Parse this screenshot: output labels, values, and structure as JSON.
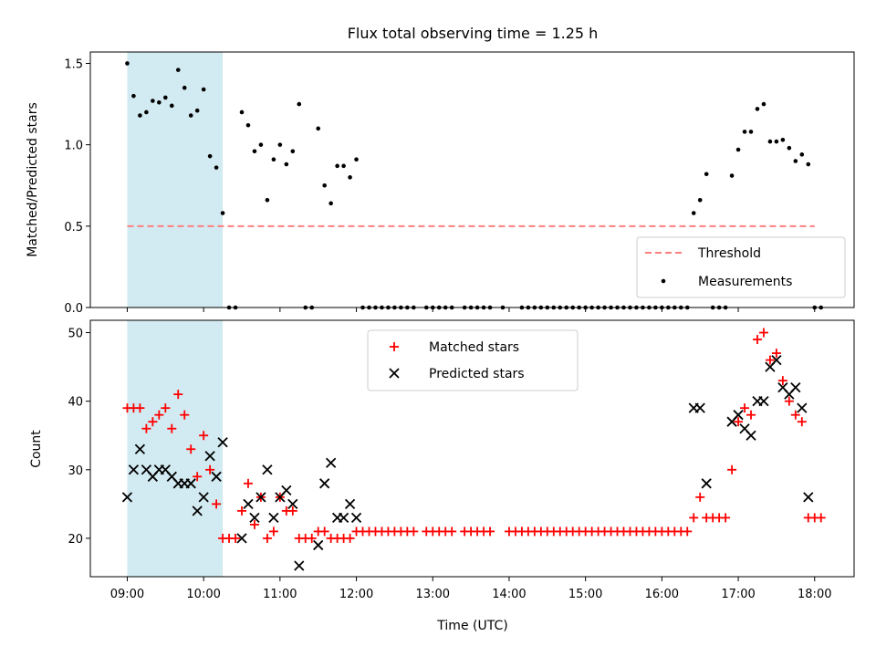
{
  "chart_data": [
    {
      "type": "scatter",
      "title": "Flux total observing time = 1.25 h",
      "xlabel": "",
      "ylabel": "Matched/Predicted stars",
      "xlim": [
        "08:31",
        "18:31"
      ],
      "ylim": [
        0,
        1.57
      ],
      "yticks": [
        "0.0",
        "0.5",
        "1.0",
        "1.5"
      ],
      "shaded_interval": [
        "09:00",
        "10:15"
      ],
      "shaded_color": "#add8e6",
      "threshold": {
        "name": "Threshold",
        "value": 0.5,
        "x_range": [
          "09:00",
          "18:00"
        ],
        "color": "#ff7f7f",
        "style": "dashed"
      },
      "legend_position": "lower-right",
      "series": [
        {
          "name": "Measurements",
          "color": "#000000",
          "marker": "dot",
          "points": [
            [
              "09:00",
              1.5
            ],
            [
              "09:05",
              1.3
            ],
            [
              "09:10",
              1.18
            ],
            [
              "09:15",
              1.2
            ],
            [
              "09:20",
              1.27
            ],
            [
              "09:25",
              1.26
            ],
            [
              "09:30",
              1.29
            ],
            [
              "09:35",
              1.24
            ],
            [
              "09:40",
              1.46
            ],
            [
              "09:45",
              1.35
            ],
            [
              "09:50",
              1.18
            ],
            [
              "09:55",
              1.21
            ],
            [
              "10:00",
              1.34
            ],
            [
              "10:05",
              0.93
            ],
            [
              "10:10",
              0.86
            ],
            [
              "10:15",
              0.58
            ],
            [
              "10:20",
              0.0
            ],
            [
              "10:25",
              0.0
            ],
            [
              "10:30",
              1.2
            ],
            [
              "10:35",
              1.12
            ],
            [
              "10:40",
              0.96
            ],
            [
              "10:45",
              1.0
            ],
            [
              "10:50",
              0.66
            ],
            [
              "10:55",
              0.91
            ],
            [
              "11:00",
              1.0
            ],
            [
              "11:05",
              0.88
            ],
            [
              "11:10",
              0.96
            ],
            [
              "11:15",
              1.25
            ],
            [
              "11:20",
              0.0
            ],
            [
              "11:25",
              0.0
            ],
            [
              "11:30",
              1.1
            ],
            [
              "11:35",
              0.75
            ],
            [
              "11:40",
              0.64
            ],
            [
              "11:45",
              0.87
            ],
            [
              "11:50",
              0.87
            ],
            [
              "11:55",
              0.8
            ],
            [
              "12:00",
              0.91
            ],
            [
              "12:05",
              0.0
            ],
            [
              "12:10",
              0.0
            ],
            [
              "12:15",
              0.0
            ],
            [
              "12:20",
              0.0
            ],
            [
              "12:25",
              0.0
            ],
            [
              "12:30",
              0.0
            ],
            [
              "12:35",
              0.0
            ],
            [
              "12:40",
              0.0
            ],
            [
              "12:45",
              0.0
            ],
            [
              "12:55",
              0.0
            ],
            [
              "13:00",
              0.0
            ],
            [
              "13:05",
              0.0
            ],
            [
              "13:10",
              0.0
            ],
            [
              "13:15",
              0.0
            ],
            [
              "13:25",
              0.0
            ],
            [
              "13:30",
              0.0
            ],
            [
              "13:35",
              0.0
            ],
            [
              "13:40",
              0.0
            ],
            [
              "13:45",
              0.0
            ],
            [
              "13:55",
              0.0
            ],
            [
              "14:10",
              0.0
            ],
            [
              "14:15",
              0.0
            ],
            [
              "14:20",
              0.0
            ],
            [
              "14:25",
              0.0
            ],
            [
              "14:30",
              0.0
            ],
            [
              "14:35",
              0.0
            ],
            [
              "14:40",
              0.0
            ],
            [
              "14:45",
              0.0
            ],
            [
              "14:50",
              0.0
            ],
            [
              "14:55",
              0.0
            ],
            [
              "15:00",
              0.0
            ],
            [
              "15:05",
              0.0
            ],
            [
              "15:10",
              0.0
            ],
            [
              "15:15",
              0.0
            ],
            [
              "15:20",
              0.0
            ],
            [
              "15:25",
              0.0
            ],
            [
              "15:30",
              0.0
            ],
            [
              "15:35",
              0.0
            ],
            [
              "15:40",
              0.0
            ],
            [
              "15:45",
              0.0
            ],
            [
              "15:50",
              0.0
            ],
            [
              "15:55",
              0.0
            ],
            [
              "16:00",
              0.0
            ],
            [
              "16:05",
              0.0
            ],
            [
              "16:10",
              0.0
            ],
            [
              "16:15",
              0.0
            ],
            [
              "16:20",
              0.0
            ],
            [
              "16:25",
              0.58
            ],
            [
              "16:30",
              0.66
            ],
            [
              "16:35",
              0.82
            ],
            [
              "16:40",
              0.0
            ],
            [
              "16:45",
              0.0
            ],
            [
              "16:50",
              0.0
            ],
            [
              "16:55",
              0.81
            ],
            [
              "17:00",
              0.97
            ],
            [
              "17:05",
              1.08
            ],
            [
              "17:10",
              1.08
            ],
            [
              "17:15",
              1.22
            ],
            [
              "17:20",
              1.25
            ],
            [
              "17:25",
              1.02
            ],
            [
              "17:30",
              1.02
            ],
            [
              "17:35",
              1.03
            ],
            [
              "17:40",
              0.98
            ],
            [
              "17:45",
              0.9
            ],
            [
              "17:50",
              0.94
            ],
            [
              "17:55",
              0.88
            ],
            [
              "18:00",
              0.0
            ],
            [
              "18:05",
              0.0
            ]
          ]
        }
      ]
    },
    {
      "type": "scatter",
      "title": "",
      "xlabel": "Time (UTC)",
      "ylabel": "Count",
      "xlim": [
        "08:31",
        "18:31"
      ],
      "ylim": [
        14.4,
        51.8
      ],
      "yticks": [
        "20",
        "30",
        "40",
        "50"
      ],
      "xticks": [
        "09:00",
        "10:00",
        "11:00",
        "12:00",
        "13:00",
        "14:00",
        "15:00",
        "16:00",
        "17:00",
        "18:00"
      ],
      "shaded_interval": [
        "09:00",
        "10:15"
      ],
      "shaded_color": "#add8e6",
      "legend_position": "upper-center",
      "series": [
        {
          "name": "Matched stars",
          "color": "#ff0000",
          "marker": "plus",
          "points": [
            [
              "09:00",
              39
            ],
            [
              "09:05",
              39
            ],
            [
              "09:10",
              39
            ],
            [
              "09:15",
              36
            ],
            [
              "09:20",
              37
            ],
            [
              "09:25",
              38
            ],
            [
              "09:30",
              39
            ],
            [
              "09:35",
              36
            ],
            [
              "09:40",
              41
            ],
            [
              "09:45",
              38
            ],
            [
              "09:50",
              33
            ],
            [
              "09:55",
              29
            ],
            [
              "10:00",
              35
            ],
            [
              "10:05",
              30
            ],
            [
              "10:10",
              25
            ],
            [
              "10:15",
              20
            ],
            [
              "10:20",
              20
            ],
            [
              "10:25",
              20
            ],
            [
              "10:30",
              24
            ],
            [
              "10:35",
              28
            ],
            [
              "10:40",
              22
            ],
            [
              "10:45",
              26
            ],
            [
              "10:50",
              20
            ],
            [
              "10:55",
              21
            ],
            [
              "11:00",
              26
            ],
            [
              "11:05",
              24
            ],
            [
              "11:10",
              24
            ],
            [
              "11:15",
              20
            ],
            [
              "11:20",
              20
            ],
            [
              "11:25",
              20
            ],
            [
              "11:30",
              21
            ],
            [
              "11:35",
              21
            ],
            [
              "11:40",
              20
            ],
            [
              "11:45",
              20
            ],
            [
              "11:50",
              20
            ],
            [
              "11:55",
              20
            ],
            [
              "12:00",
              21
            ],
            [
              "12:05",
              21
            ],
            [
              "12:10",
              21
            ],
            [
              "12:15",
              21
            ],
            [
              "12:20",
              21
            ],
            [
              "12:25",
              21
            ],
            [
              "12:30",
              21
            ],
            [
              "12:35",
              21
            ],
            [
              "12:40",
              21
            ],
            [
              "12:45",
              21
            ],
            [
              "12:55",
              21
            ],
            [
              "13:00",
              21
            ],
            [
              "13:05",
              21
            ],
            [
              "13:10",
              21
            ],
            [
              "13:15",
              21
            ],
            [
              "13:25",
              21
            ],
            [
              "13:30",
              21
            ],
            [
              "13:35",
              21
            ],
            [
              "13:40",
              21
            ],
            [
              "13:45",
              21
            ],
            [
              "14:00",
              21
            ],
            [
              "14:05",
              21
            ],
            [
              "14:10",
              21
            ],
            [
              "14:15",
              21
            ],
            [
              "14:20",
              21
            ],
            [
              "14:25",
              21
            ],
            [
              "14:30",
              21
            ],
            [
              "14:35",
              21
            ],
            [
              "14:40",
              21
            ],
            [
              "14:45",
              21
            ],
            [
              "14:50",
              21
            ],
            [
              "14:55",
              21
            ],
            [
              "15:00",
              21
            ],
            [
              "15:05",
              21
            ],
            [
              "15:10",
              21
            ],
            [
              "15:15",
              21
            ],
            [
              "15:20",
              21
            ],
            [
              "15:25",
              21
            ],
            [
              "15:30",
              21
            ],
            [
              "15:35",
              21
            ],
            [
              "15:40",
              21
            ],
            [
              "15:45",
              21
            ],
            [
              "15:50",
              21
            ],
            [
              "15:55",
              21
            ],
            [
              "16:00",
              21
            ],
            [
              "16:05",
              21
            ],
            [
              "16:10",
              21
            ],
            [
              "16:15",
              21
            ],
            [
              "16:20",
              21
            ],
            [
              "16:25",
              23
            ],
            [
              "16:30",
              26
            ],
            [
              "16:35",
              23
            ],
            [
              "16:40",
              23
            ],
            [
              "16:45",
              23
            ],
            [
              "16:50",
              23
            ],
            [
              "16:55",
              30
            ],
            [
              "17:00",
              37
            ],
            [
              "17:05",
              39
            ],
            [
              "17:10",
              38
            ],
            [
              "17:15",
              49
            ],
            [
              "17:20",
              50
            ],
            [
              "17:25",
              46
            ],
            [
              "17:30",
              47
            ],
            [
              "17:35",
              43
            ],
            [
              "17:40",
              40
            ],
            [
              "17:45",
              38
            ],
            [
              "17:50",
              37
            ],
            [
              "17:55",
              23
            ],
            [
              "18:00",
              23
            ],
            [
              "18:05",
              23
            ]
          ]
        },
        {
          "name": "Predicted stars",
          "color": "#000000",
          "marker": "x",
          "points": [
            [
              "09:00",
              26
            ],
            [
              "09:05",
              30
            ],
            [
              "09:10",
              33
            ],
            [
              "09:15",
              30
            ],
            [
              "09:20",
              29
            ],
            [
              "09:25",
              30
            ],
            [
              "09:30",
              30
            ],
            [
              "09:35",
              29
            ],
            [
              "09:40",
              28
            ],
            [
              "09:45",
              28
            ],
            [
              "09:50",
              28
            ],
            [
              "09:55",
              24
            ],
            [
              "10:00",
              26
            ],
            [
              "10:05",
              32
            ],
            [
              "10:10",
              29
            ],
            [
              "10:15",
              34
            ],
            [
              "10:30",
              20
            ],
            [
              "10:35",
              25
            ],
            [
              "10:40",
              23
            ],
            [
              "10:45",
              26
            ],
            [
              "10:50",
              30
            ],
            [
              "10:55",
              23
            ],
            [
              "11:00",
              26
            ],
            [
              "11:05",
              27
            ],
            [
              "11:10",
              25
            ],
            [
              "11:15",
              16
            ],
            [
              "11:30",
              19
            ],
            [
              "11:35",
              28
            ],
            [
              "11:40",
              31
            ],
            [
              "11:45",
              23
            ],
            [
              "11:50",
              23
            ],
            [
              "11:55",
              25
            ],
            [
              "12:00",
              23
            ],
            [
              "16:25",
              39
            ],
            [
              "16:30",
              39
            ],
            [
              "16:35",
              28
            ],
            [
              "16:55",
              37
            ],
            [
              "17:00",
              38
            ],
            [
              "17:05",
              36
            ],
            [
              "17:10",
              35
            ],
            [
              "17:15",
              40
            ],
            [
              "17:20",
              40
            ],
            [
              "17:25",
              45
            ],
            [
              "17:30",
              46
            ],
            [
              "17:35",
              42
            ],
            [
              "17:40",
              41
            ],
            [
              "17:45",
              42
            ],
            [
              "17:50",
              39
            ],
            [
              "17:55",
              26
            ]
          ]
        }
      ]
    }
  ]
}
